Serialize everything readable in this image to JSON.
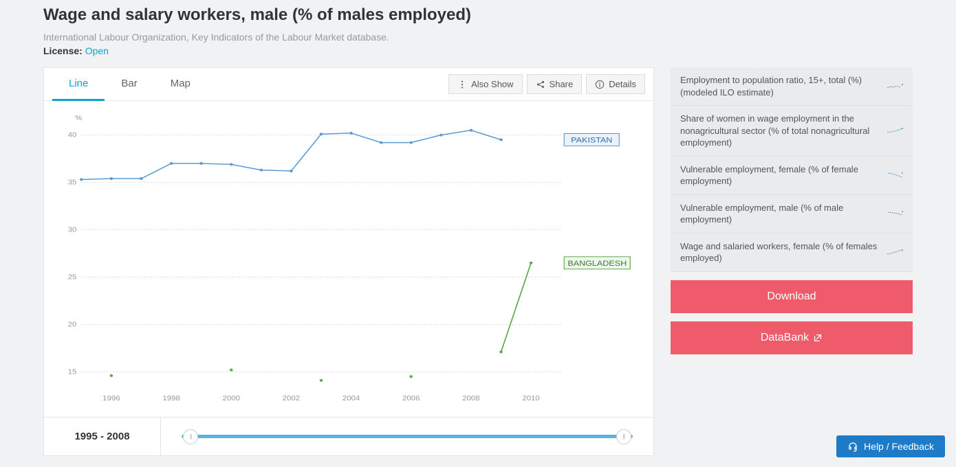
{
  "header": {
    "title": "Wage and salary workers, male (% of males employed)",
    "subtitle": "International Labour Organization, Key Indicators of the Labour Market database.",
    "license_label": "License:",
    "license_value": "Open"
  },
  "tabs": {
    "line": "Line",
    "bar": "Bar",
    "map": "Map",
    "active": "line"
  },
  "tools": {
    "also_show": "Also Show",
    "share": "Share",
    "details": "Details"
  },
  "chart": {
    "type": "line",
    "y_unit_label": "%",
    "ylim": [
      13,
      42
    ],
    "yticks": [
      15,
      20,
      25,
      30,
      35,
      40
    ],
    "x_years": [
      1995,
      1996,
      1997,
      1998,
      1999,
      2000,
      2001,
      2002,
      2003,
      2004,
      2005,
      2006,
      2007,
      2008,
      2009,
      2010,
      2011
    ],
    "xtick_years": [
      1996,
      1998,
      2000,
      2002,
      2004,
      2006,
      2008,
      2010
    ],
    "xlim": [
      1995,
      2011
    ],
    "grid_color": "#dddddd",
    "background_color": "#ffffff",
    "axis_label_color": "#999999",
    "axis_label_fontsize": 10,
    "series": [
      {
        "name": "PAKISTAN",
        "color": "#5a9bd4",
        "tag_bg": "#eaf3fb",
        "tag_border": "#5a9bd4",
        "tag_text_color": "#2f6fa8",
        "line_width": 1.5,
        "marker": "circle",
        "marker_size": 2,
        "points": [
          {
            "x": 1995,
            "y": 35.3
          },
          {
            "x": 1996,
            "y": 35.4
          },
          {
            "x": 1997,
            "y": 35.4
          },
          {
            "x": 1998,
            "y": 37.0
          },
          {
            "x": 1999,
            "y": 37.0
          },
          {
            "x": 2000,
            "y": 36.9
          },
          {
            "x": 2001,
            "y": 36.3
          },
          {
            "x": 2002,
            "y": 36.2
          },
          {
            "x": 2003,
            "y": 40.1
          },
          {
            "x": 2004,
            "y": 40.2
          },
          {
            "x": 2005,
            "y": 39.2
          },
          {
            "x": 2006,
            "y": 39.2
          },
          {
            "x": 2007,
            "y": 40.0
          },
          {
            "x": 2008,
            "y": 40.5
          },
          {
            "x": 2009,
            "y": 39.5
          }
        ]
      },
      {
        "name": "BANGLADESH",
        "color": "#5fa84f",
        "tag_bg": "#eef7ec",
        "tag_border": "#5fa84f",
        "tag_text_color": "#3f7a33",
        "line_width": 1.5,
        "marker": "circle",
        "marker_size": 2,
        "points": [
          {
            "x": 1996,
            "y": 14.6
          },
          {
            "x": 2000,
            "y": 15.2
          },
          {
            "x": 2003,
            "y": 14.1
          },
          {
            "x": 2006,
            "y": 14.5
          },
          {
            "x": 2009,
            "y": 17.1
          },
          {
            "x": 2010,
            "y": 26.5
          }
        ]
      }
    ]
  },
  "time_range": {
    "start": "1995",
    "dash": " - ",
    "end": "2008",
    "handle_left_pct": 2,
    "handle_right_pct": 98
  },
  "related": [
    "Employment to population ratio, 15+, total (%) (modeled ILO estimate)",
    "Share of women in wage employment in the nonagricultural sector (% of total nonagricultural employment)",
    "Vulnerable employment, female (% of female employment)",
    "Vulnerable employment, male (% of male employment)",
    "Wage and salaried workers, female (% of females employed)"
  ],
  "buttons": {
    "download": "Download",
    "databank": "DataBank"
  },
  "help": "Help / Feedback"
}
